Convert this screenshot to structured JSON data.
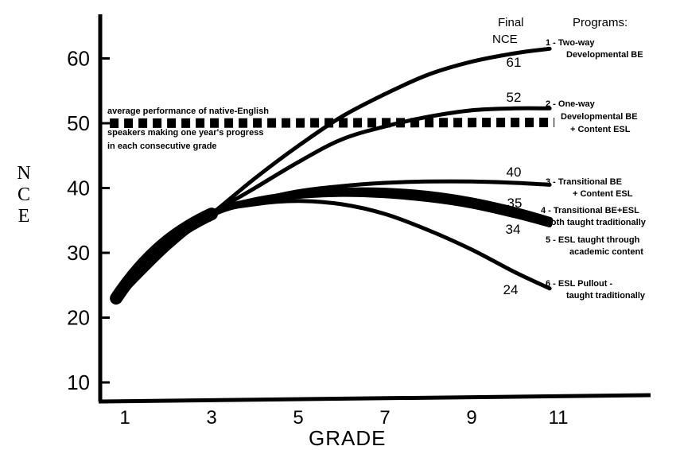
{
  "chart_data": {
    "type": "line",
    "xlabel": "GRADE",
    "ylabel": "NCE",
    "xticks": [
      1,
      3,
      5,
      7,
      9,
      11
    ],
    "yticks": [
      10,
      20,
      30,
      40,
      50,
      60
    ],
    "xlim": [
      0.5,
      13
    ],
    "ylim": [
      5,
      67
    ],
    "final_header": [
      "Final",
      "NCE"
    ],
    "programs_header": "Programs:",
    "reference": {
      "value": 50,
      "label_lines": [
        "average performance of native-English",
        "speakers making one year's progress",
        "in each consecutive grade"
      ],
      "x_range": [
        0.8,
        10.8
      ]
    },
    "series": [
      {
        "name": "1 - Two-way Developmental BE",
        "label_lines": [
          "1 - Two-way",
          "Developmental BE"
        ],
        "final": "61",
        "x": [
          0.8,
          2,
          3,
          4,
          5,
          6,
          7,
          8,
          9,
          10,
          10.8
        ],
        "y": [
          23,
          31,
          36,
          41.5,
          46.5,
          51,
          54.5,
          57.5,
          59.5,
          60.8,
          61.5
        ]
      },
      {
        "name": "2 - One-way Developmental BE + Content ESL",
        "label_lines": [
          "2 - One-way",
          "Developmental BE",
          "+ Content ESL"
        ],
        "final": "52",
        "x": [
          0.8,
          2,
          3,
          4,
          5,
          6,
          7,
          8,
          9,
          10,
          10.8
        ],
        "y": [
          23,
          31,
          36,
          40,
          44,
          47.5,
          49.5,
          51,
          52,
          52.3,
          52.3
        ]
      },
      {
        "name": "3 - Transitional BE + Content ESL",
        "label_lines": [
          "3 - Transitional BE",
          "+ Content ESL"
        ],
        "final": "40",
        "x": [
          0.8,
          2,
          3,
          4,
          5,
          6,
          7,
          8,
          9,
          10,
          10.8
        ],
        "y": [
          23,
          31,
          36,
          38,
          39.5,
          40.3,
          40.8,
          41,
          41,
          40.8,
          40.5
        ]
      },
      {
        "name": "4 - Transitional BE+ESL both taught traditionally",
        "label_lines": [
          "4 - Transitional BE+ESL",
          "both taught traditionally"
        ],
        "final": "35",
        "x": [
          0.8,
          2,
          3,
          4,
          5,
          6,
          7,
          8,
          9,
          10,
          10.8
        ],
        "y": [
          23,
          31,
          36,
          38,
          39,
          39.5,
          39.5,
          39,
          38,
          36.5,
          35
        ]
      },
      {
        "name": "5 - ESL taught through academic content",
        "label_lines": [
          "5 - ESL taught through",
          "academic content"
        ],
        "final": "34",
        "x": [
          0.8,
          2,
          3,
          4,
          5,
          6,
          7,
          8,
          9,
          10,
          10.8
        ],
        "y": [
          23,
          31,
          36,
          38,
          38.7,
          39,
          38.8,
          38.2,
          37.2,
          35.7,
          34.3
        ]
      },
      {
        "name": "6 - ESL Pullout - taught traditionally",
        "label_lines": [
          "6 - ESL Pullout -",
          "taught traditionally"
        ],
        "final": "24",
        "x": [
          0.8,
          2,
          3,
          4,
          5,
          6,
          7,
          8,
          9,
          10,
          10.8
        ],
        "y": [
          23,
          31,
          36,
          37.5,
          38,
          37.5,
          36,
          33.5,
          30.5,
          27,
          24.5
        ]
      }
    ]
  }
}
